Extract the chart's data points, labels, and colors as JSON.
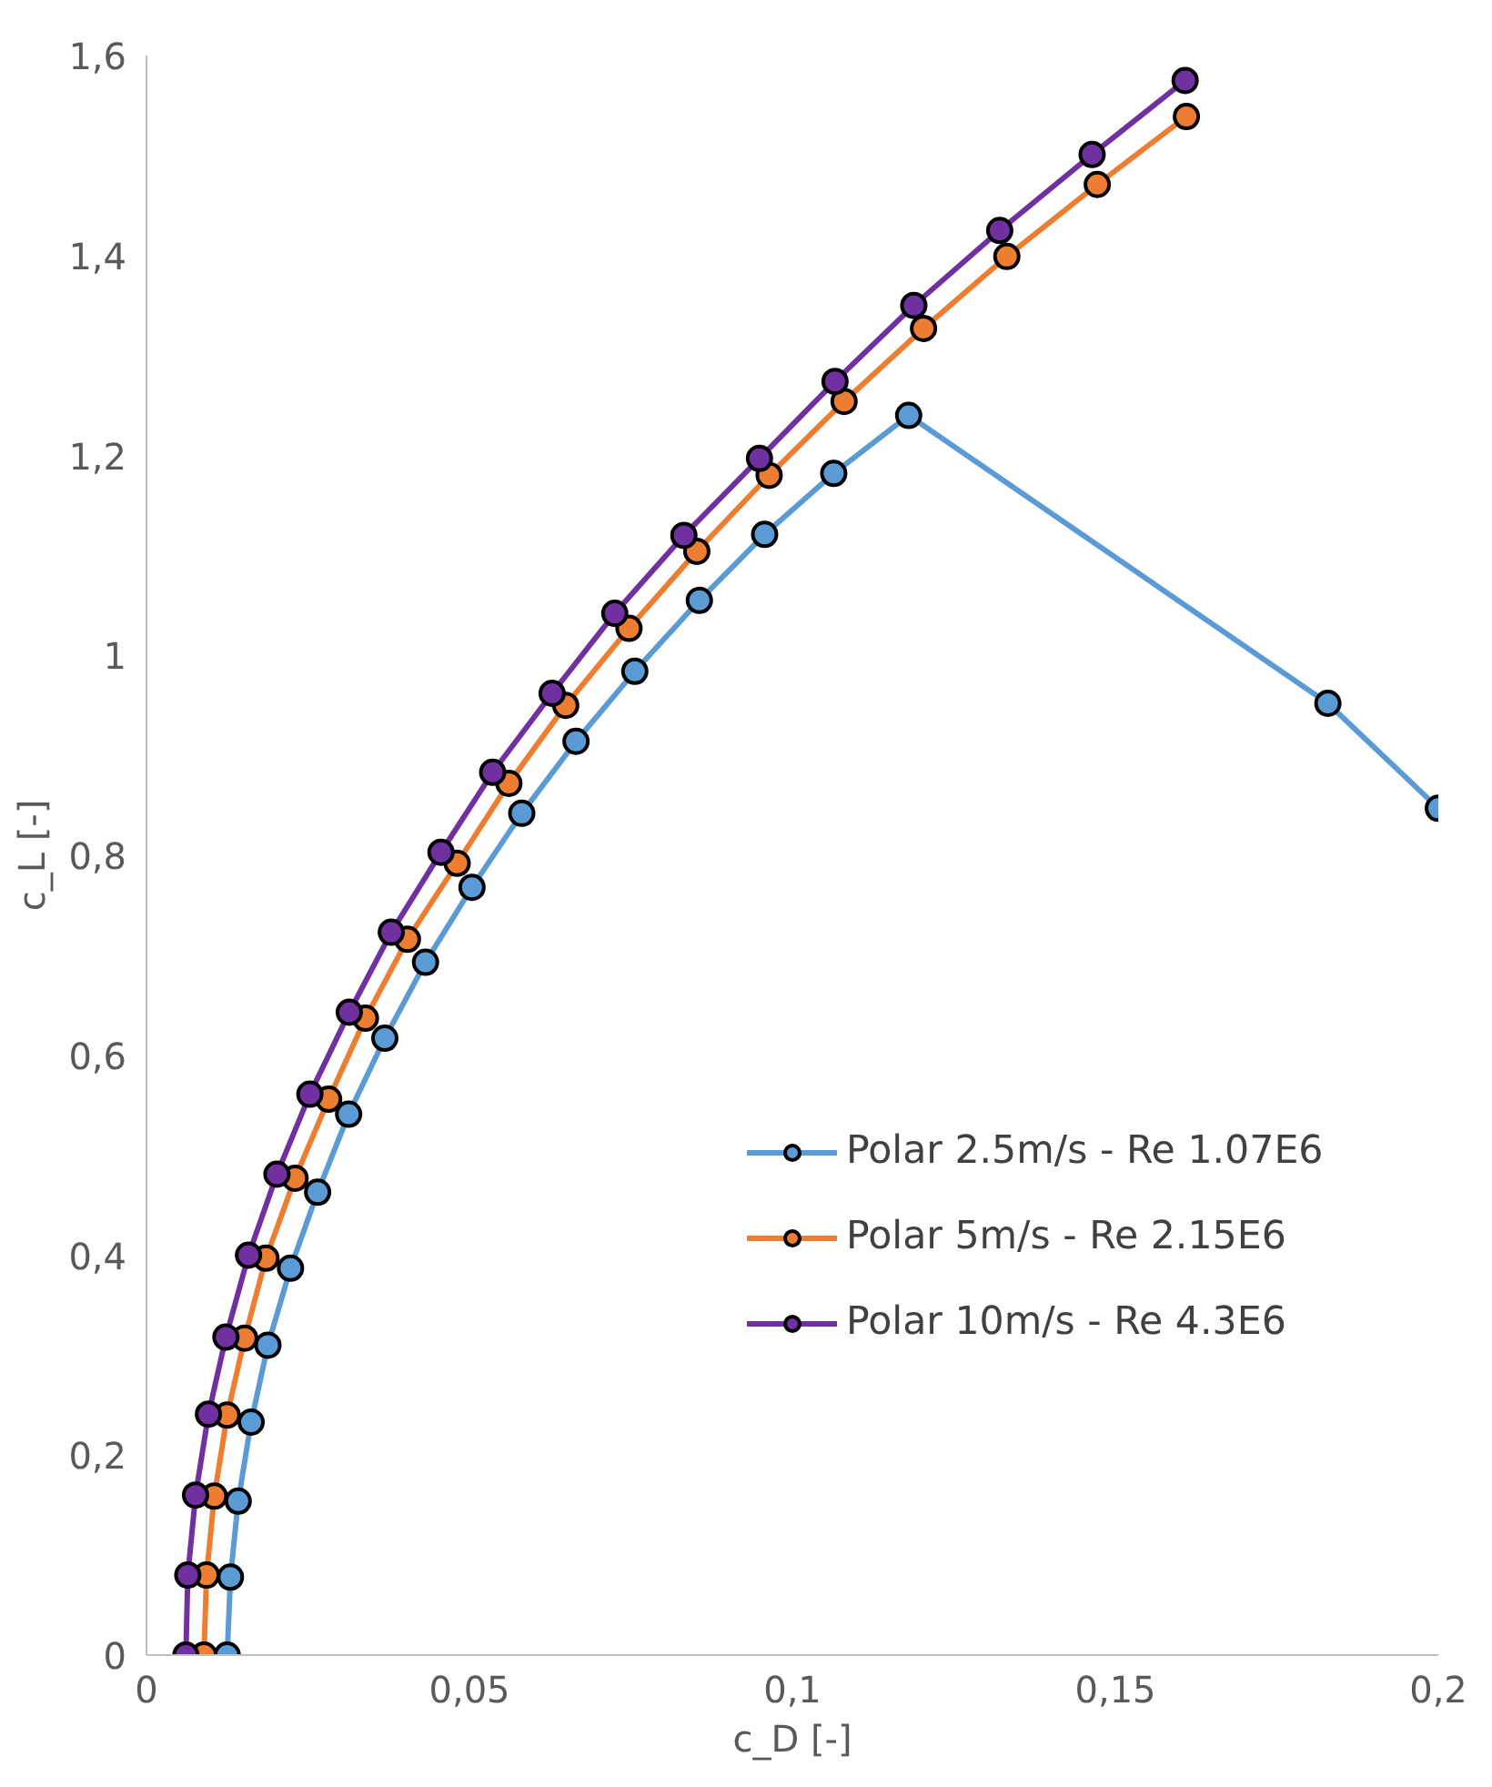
{
  "chart_data": {
    "type": "line",
    "xlabel": "c_D [-]",
    "ylabel": "c_L [-]",
    "xlim": [
      0,
      0.2
    ],
    "ylim": [
      0,
      1.6
    ],
    "xticks": [
      0,
      {
        "value": 0.05,
        "label": "0,05"
      },
      {
        "value": 0.1,
        "label": "0,1"
      },
      {
        "value": 0.15,
        "label": "0,15"
      },
      {
        "value": 0.2,
        "label": "0,2"
      }
    ],
    "yticks": [
      0,
      {
        "value": 0.2,
        "label": "0,2"
      },
      {
        "value": 0.4,
        "label": "0,4"
      },
      {
        "value": 0.6,
        "label": "0,6"
      },
      {
        "value": 0.8,
        "label": "0,8"
      },
      1,
      {
        "value": 1.2,
        "label": "1,2"
      },
      {
        "value": 1.4,
        "label": "1,4"
      },
      {
        "value": 1.6,
        "label": "1,6"
      }
    ],
    "grid": false,
    "legend": "bottom right",
    "marker": "circle",
    "line_style": "solid",
    "series": [
      {
        "name": "Polar 2.5m/s - Re 1.07E6",
        "color": "#5b9bd5",
        "x": [
          0.0125,
          0.013,
          0.0142,
          0.0162,
          0.0188,
          0.0223,
          0.0265,
          0.0313,
          0.0369,
          0.0432,
          0.0504,
          0.0581,
          0.0665,
          0.0756,
          0.0856,
          0.0957,
          0.1064,
          0.118,
          0.1829,
          0.2
        ],
        "values": [
          0,
          0.078,
          0.154,
          0.233,
          0.31,
          0.387,
          0.463,
          0.541,
          0.617,
          0.693,
          0.768,
          0.842,
          0.914,
          0.984,
          1.055,
          1.121,
          1.182,
          1.24,
          0.952,
          0.847
        ]
      },
      {
        "name": "Polar 5m/s - Re 2.15E6",
        "color": "#ed7d31",
        "x": [
          0.0089,
          0.0093,
          0.0105,
          0.0125,
          0.0152,
          0.0185,
          0.023,
          0.0282,
          0.0339,
          0.0404,
          0.0481,
          0.0561,
          0.0649,
          0.0747,
          0.0852,
          0.0964,
          0.108,
          0.1203,
          0.1332,
          0.1472,
          0.161
        ],
        "values": [
          0,
          0.08,
          0.159,
          0.24,
          0.317,
          0.397,
          0.477,
          0.556,
          0.637,
          0.716,
          0.792,
          0.872,
          0.95,
          1.027,
          1.104,
          1.18,
          1.254,
          1.327,
          1.399,
          1.471,
          1.539
        ]
      },
      {
        "name": "Polar 10m/s - Re 4.3E6",
        "color": "#7030a0",
        "x": [
          0.0061,
          0.0064,
          0.0076,
          0.0096,
          0.0123,
          0.0158,
          0.0202,
          0.0253,
          0.0314,
          0.0379,
          0.0456,
          0.0536,
          0.0628,
          0.0725,
          0.0832,
          0.0949,
          0.1066,
          0.1188,
          0.1321,
          0.1464,
          0.1608
        ],
        "values": [
          0,
          0.08,
          0.16,
          0.241,
          0.318,
          0.4,
          0.481,
          0.561,
          0.643,
          0.723,
          0.803,
          0.883,
          0.962,
          1.042,
          1.12,
          1.197,
          1.274,
          1.35,
          1.425,
          1.501,
          1.575
        ]
      }
    ]
  }
}
